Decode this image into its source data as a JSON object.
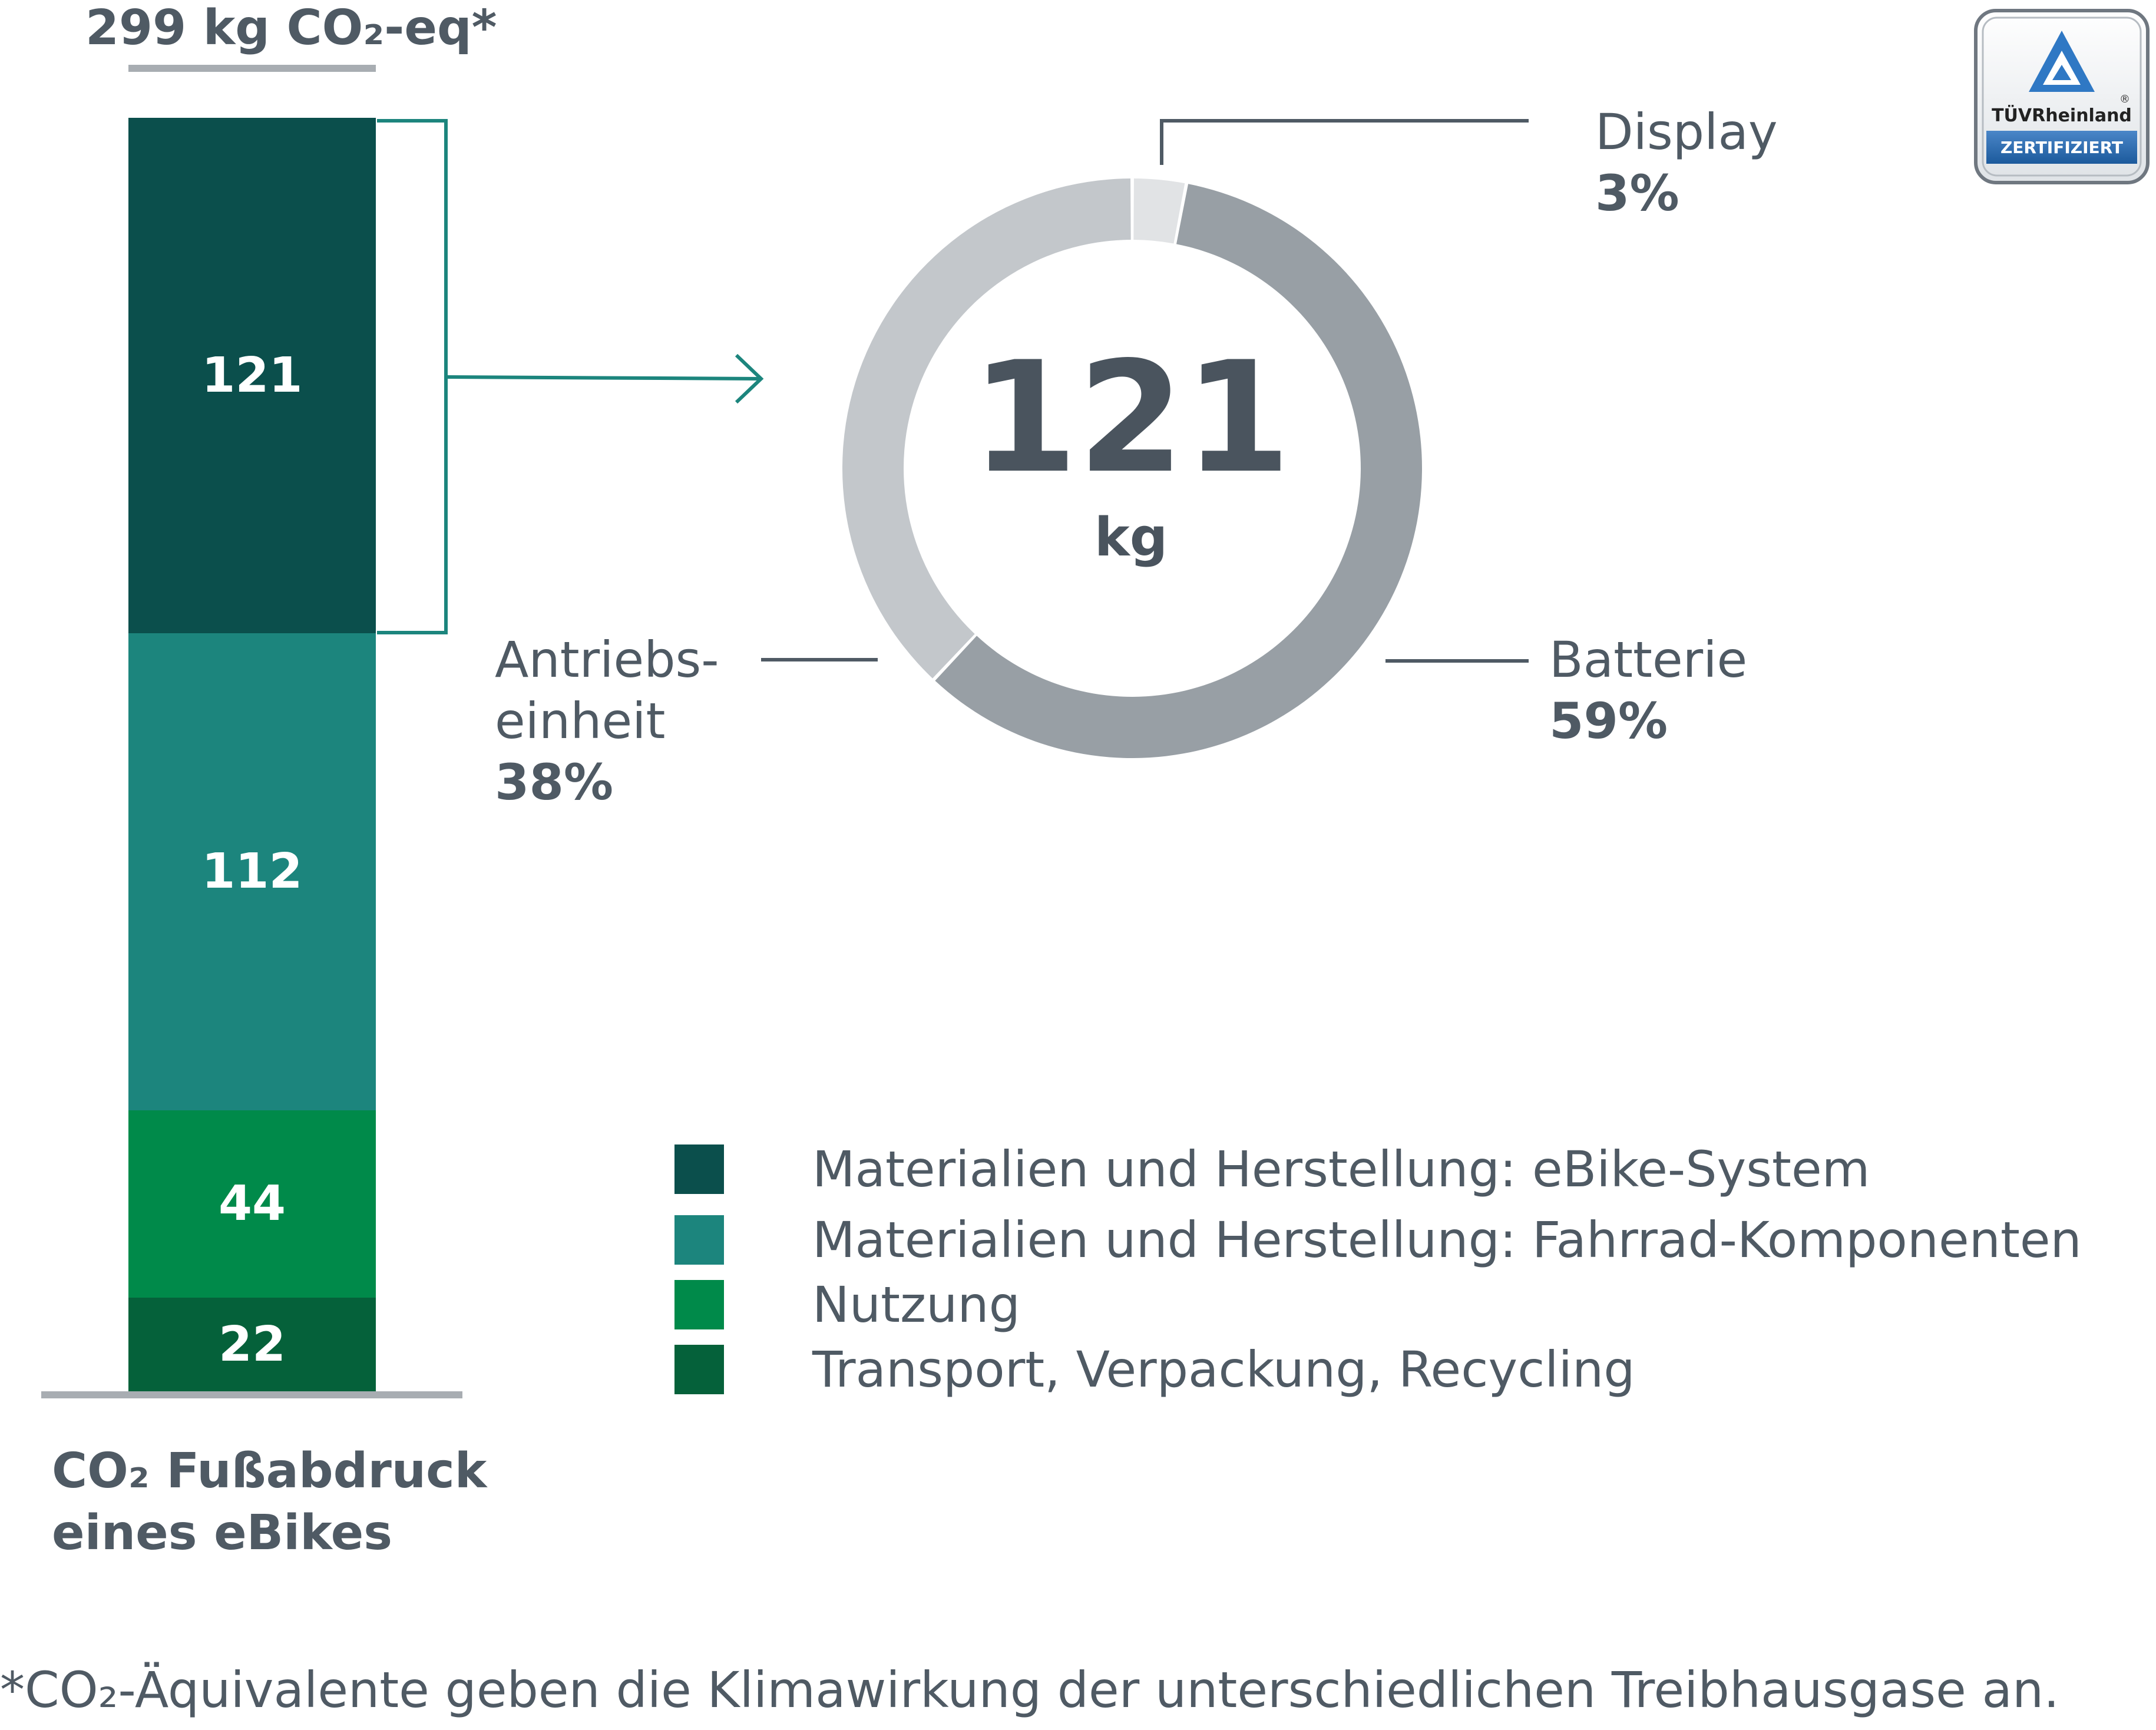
{
  "header": {
    "total_label": "299 kg CO₂-eq*"
  },
  "chart_data": [
    {
      "type": "bar",
      "stacked": true,
      "total": 299,
      "unit": "kg CO₂-eq",
      "title": "CO₂ Fußabdruck eines eBikes",
      "series": [
        {
          "name": "Transport, Verpackung, Recycling",
          "value": 22,
          "label": "22",
          "color": "#05613a"
        },
        {
          "name": "Nutzung",
          "value": 44,
          "label": "44",
          "color": "#008a4a"
        },
        {
          "name": "Materialien und Herstellung: Fahrrad-Komponenten",
          "value": 112,
          "label": "112",
          "color": "#1c857d"
        },
        {
          "name": "Materialien und Herstellung: eBike-System",
          "value": 121,
          "label": "121",
          "color": "#0b4f4c"
        }
      ]
    },
    {
      "type": "pie",
      "donut": true,
      "total_value": "121",
      "total_unit": "kg",
      "slices": [
        {
          "name": "Display",
          "percent": 3,
          "percent_label": "3%",
          "color": "#e1e3e5"
        },
        {
          "name": "Batterie",
          "percent": 59,
          "percent_label": "59%",
          "color": "#989fa5"
        },
        {
          "name": "Antriebseinheit",
          "label_line1": "Antriebs-",
          "label_line2": "einheit",
          "percent": 38,
          "percent_label": "38%",
          "color": "#c3c7cb"
        }
      ]
    }
  ],
  "legend": [
    {
      "label": "Materialien und Herstellung: eBike-System",
      "color": "#0b4f4c"
    },
    {
      "label": "Materialien und Herstellung: Fahrrad-Komponenten",
      "color": "#1c857d"
    },
    {
      "label": "Nutzung",
      "color": "#008a4a"
    },
    {
      "label": "Transport, Verpackung, Recycling",
      "color": "#05613a"
    }
  ],
  "bar_title": {
    "line1": "CO₂ Fußabdruck",
    "line2": "eines eBikes"
  },
  "footnote": "*CO₂-Äquivalente geben die Klimawirkung der unterschiedlichen Treibhausgase an.",
  "badge": {
    "brand": "TÜVRheinland",
    "registered": "®",
    "status": "ZERTIFIZIERT",
    "icon": "tuv-triangle-icon"
  }
}
